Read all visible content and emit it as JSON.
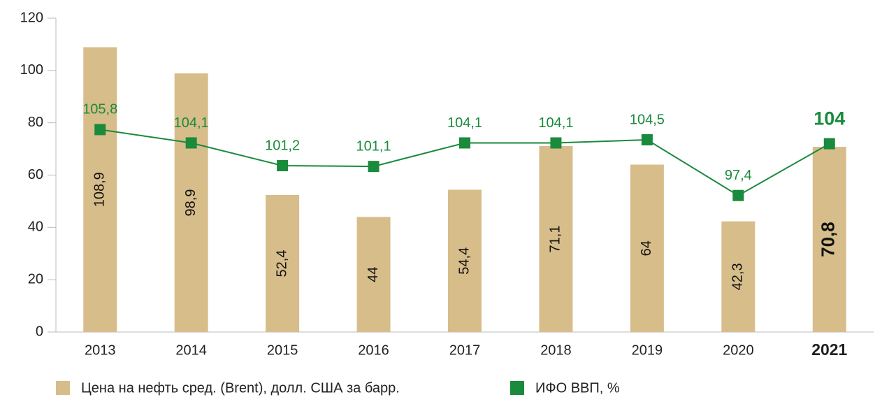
{
  "chart_data": {
    "type": "bar",
    "categories": [
      "2013",
      "2014",
      "2015",
      "2016",
      "2017",
      "2018",
      "2019",
      "2020",
      "2021"
    ],
    "highlight_index": 8,
    "ylim": [
      0,
      120
    ],
    "yticks": [
      0,
      20,
      40,
      60,
      80,
      100,
      120
    ],
    "y2lim": [
      80,
      120
    ],
    "grid": false,
    "legend": "bottom",
    "series": [
      {
        "name": "Цена на нефть сред. (Brent), долл. США за барр.",
        "type": "bar",
        "color": "#d7bd8a",
        "values": [
          108.9,
          98.9,
          52.4,
          44,
          54.4,
          71.1,
          64,
          42.3,
          70.8
        ],
        "value_labels": [
          "108,9",
          "98,9",
          "52,4",
          "44",
          "54,4",
          "71,1",
          "64",
          "42,3",
          "70,8"
        ]
      },
      {
        "name": "ИФО ВВП, %",
        "type": "line",
        "axis": "y2",
        "color": "#1a8a3c",
        "values": [
          105.8,
          104.1,
          101.2,
          101.1,
          104.1,
          104.1,
          104.5,
          97.4,
          104
        ],
        "value_labels": [
          "105,8",
          "104,1",
          "101,2",
          "101,1",
          "104,1",
          "104,1",
          "104,5",
          "97,4",
          "104"
        ]
      }
    ]
  }
}
